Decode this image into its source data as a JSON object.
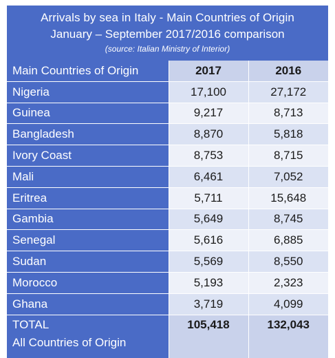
{
  "header": {
    "title": "Arrivals by sea in Italy - Main Countries of Origin",
    "subtitle": "January – September 2017/2016 comparison",
    "source": "(source: Italian Ministry of Interior)"
  },
  "chart_data": {
    "type": "table",
    "title": "Arrivals by sea in Italy - Main Countries of Origin",
    "subtitle": "January – September 2017/2016 comparison",
    "columns": [
      "Main Countries of Origin",
      "2017",
      "2016"
    ],
    "rows": [
      {
        "country": "Nigeria",
        "v2017": "17,100",
        "v2016": "27,172"
      },
      {
        "country": "Guinea",
        "v2017": "9,217",
        "v2016": "8,713"
      },
      {
        "country": "Bangladesh",
        "v2017": "8,870",
        "v2016": "5,818"
      },
      {
        "country": "Ivory Coast",
        "v2017": "8,753",
        "v2016": "8,715"
      },
      {
        "country": "Mali",
        "v2017": "6,461",
        "v2016": "7,052"
      },
      {
        "country": "Eritrea",
        "v2017": "5,711",
        "v2016": "15,648"
      },
      {
        "country": "Gambia",
        "v2017": "5,649",
        "v2016": "8,745"
      },
      {
        "country": "Senegal",
        "v2017": "5,616",
        "v2016": "6,885"
      },
      {
        "country": "Sudan",
        "v2017": "5,569",
        "v2016": "8,550"
      },
      {
        "country": "Morocco",
        "v2017": "5,193",
        "v2016": "2,323"
      },
      {
        "country": "Ghana",
        "v2017": "3,719",
        "v2016": "4,099"
      }
    ],
    "total": {
      "label": "TOTAL",
      "sublabel": "All Countries of Origin",
      "v2017": "105,418",
      "v2016": "132,043"
    }
  }
}
